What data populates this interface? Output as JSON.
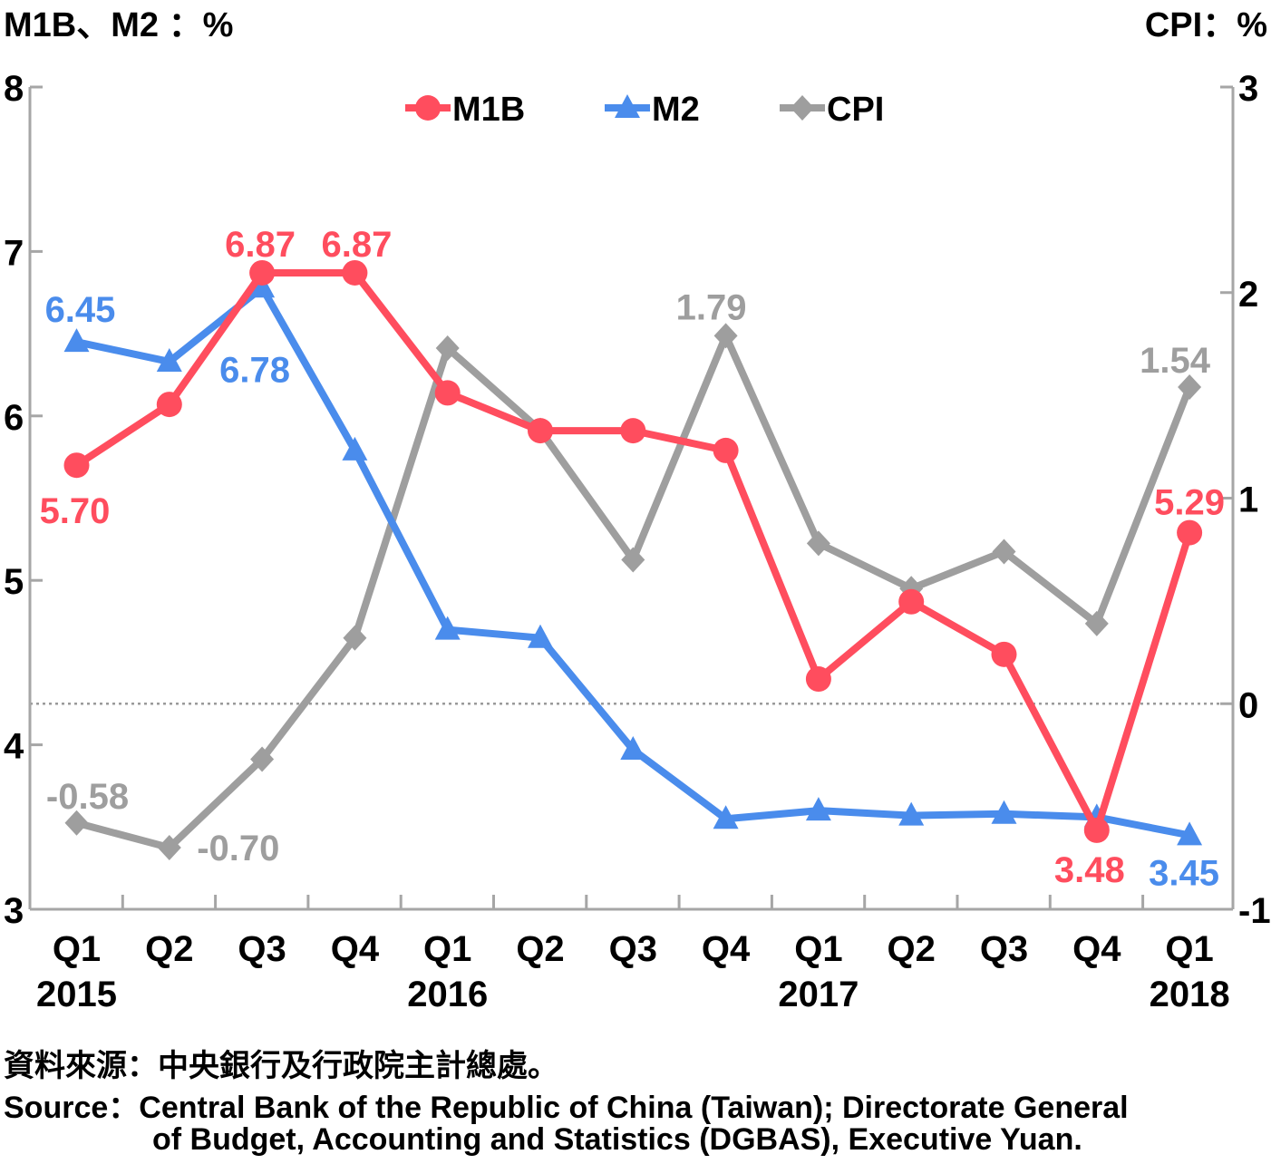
{
  "chart_data": {
    "type": "line",
    "left_axis_title": "M1B、M2 ：%",
    "right_axis_title": "CPI：%",
    "categories": [
      "Q1",
      "Q2",
      "Q3",
      "Q4",
      "Q1",
      "Q2",
      "Q3",
      "Q4",
      "Q1",
      "Q2",
      "Q3",
      "Q4",
      "Q1"
    ],
    "years": [
      {
        "label": "2015",
        "index": 0
      },
      {
        "label": "2016",
        "index": 4
      },
      {
        "label": "2017",
        "index": 8
      },
      {
        "label": "2018",
        "index": 12
      }
    ],
    "y_left": {
      "min": 3,
      "max": 8,
      "ticks": [
        "3",
        "4",
        "5",
        "6",
        "7",
        "8"
      ]
    },
    "y_right": {
      "min": -1,
      "max": 3,
      "ticks": [
        "-1",
        "0",
        "1",
        "2",
        "3"
      ]
    },
    "zero_reference_line": "dotted",
    "legend_position": "top-center",
    "series": [
      {
        "name": "M1B",
        "axis": "left",
        "color": "#ff4d5e",
        "marker": "circle",
        "values": [
          5.7,
          6.07,
          6.87,
          6.87,
          6.14,
          5.91,
          5.91,
          5.79,
          4.4,
          4.87,
          4.55,
          3.48,
          5.29
        ]
      },
      {
        "name": "M2",
        "axis": "left",
        "color": "#4a8cec",
        "marker": "triangle",
        "values": [
          6.45,
          6.33,
          6.78,
          5.79,
          4.7,
          4.65,
          3.97,
          3.55,
          3.6,
          3.57,
          3.58,
          3.56,
          3.45
        ]
      },
      {
        "name": "CPI",
        "axis": "right",
        "color": "#9e9e9e",
        "marker": "diamond",
        "values": [
          -0.58,
          -0.7,
          -0.27,
          0.32,
          1.73,
          1.33,
          0.7,
          1.79,
          0.78,
          0.56,
          0.74,
          0.39,
          1.54
        ]
      }
    ],
    "data_labels": [
      {
        "series": "M1B",
        "index": 0,
        "text": "5.70"
      },
      {
        "series": "M1B",
        "index": 2,
        "text": "6.87"
      },
      {
        "series": "M1B",
        "index": 3,
        "text": "6.87"
      },
      {
        "series": "M1B",
        "index": 11,
        "text": "3.48"
      },
      {
        "series": "M1B",
        "index": 12,
        "text": "5.29"
      },
      {
        "series": "M2",
        "index": 0,
        "text": "6.45"
      },
      {
        "series": "M2",
        "index": 2,
        "text": "6.78"
      },
      {
        "series": "M2",
        "index": 12,
        "text": "3.45"
      },
      {
        "series": "CPI",
        "index": 0,
        "text": "-0.58"
      },
      {
        "series": "CPI",
        "index": 1,
        "text": "-0.70"
      },
      {
        "series": "CPI",
        "index": 7,
        "text": "1.79"
      },
      {
        "series": "CPI",
        "index": 12,
        "text": "1.54"
      }
    ]
  },
  "source": {
    "zh": "資料來源：中央銀行及行政院主計總處。",
    "en_line1": "Source：Central Bank of the Republic of China (Taiwan); Directorate General",
    "en_line2": "of Budget, Accounting and Statistics (DGBAS), Executive Yuan."
  }
}
